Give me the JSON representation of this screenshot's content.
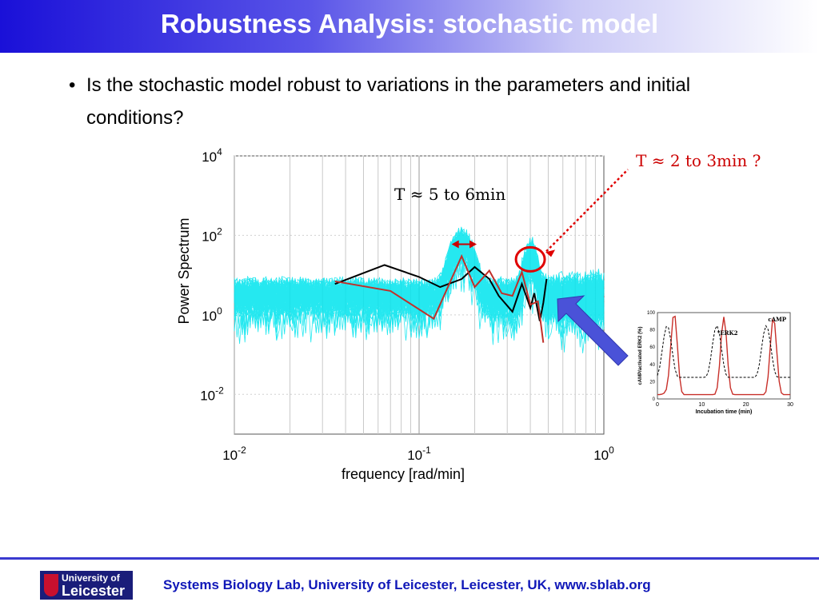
{
  "slide": {
    "title": "Robustness Analysis: stochastic model",
    "bullet_symbol": "•",
    "bullet_text": "Is the stochastic model robust to variations in the parameters and initial conditions?"
  },
  "chart_data": {
    "type": "line",
    "xlabel": "frequency [rad/min]",
    "ylabel": "Power Spectrum",
    "x_scale": "log",
    "y_scale": "log",
    "xlim": [
      0.01,
      1
    ],
    "ylim": [
      0.001,
      10000
    ],
    "x_ticks": [
      {
        "base": "10",
        "exp": "-2"
      },
      {
        "base": "10",
        "exp": "-1"
      },
      {
        "base": "10",
        "exp": "0"
      }
    ],
    "y_ticks": [
      {
        "base": "10",
        "exp": "4"
      },
      {
        "base": "10",
        "exp": "2"
      },
      {
        "base": "10",
        "exp": "0"
      },
      {
        "base": "10",
        "exp": "-2"
      }
    ],
    "grid": true,
    "colors": {
      "ensemble": "#00e5ee",
      "black": "#000000",
      "red": "#c0302a",
      "annotation": "#cc0000",
      "arrow": "#4a52d8"
    },
    "series": [
      {
        "color": "black",
        "x": [
          0.035,
          0.065,
          0.1,
          0.13,
          0.17,
          0.2,
          0.24,
          0.27,
          0.32,
          0.36,
          0.38,
          0.4,
          0.42,
          0.45,
          0.47,
          0.49
        ],
        "y": [
          6,
          18,
          9,
          5,
          8,
          16,
          8,
          3,
          1.2,
          6,
          3,
          1.5,
          3.5,
          0.7,
          2,
          8
        ]
      },
      {
        "color": "red",
        "x": [
          0.035,
          0.07,
          0.12,
          0.17,
          0.2,
          0.24,
          0.28,
          0.32,
          0.36,
          0.4,
          0.44,
          0.47
        ],
        "y": [
          7,
          4,
          0.8,
          30,
          5,
          13,
          3.5,
          3,
          12,
          1.8,
          2.2,
          0.2
        ]
      }
    ],
    "annotations": {
      "peak1": "T ≈ 5 to 6min",
      "peak2": "T ≈ 2 to 3min ?"
    }
  },
  "inset": {
    "xlabel": "Incubation time (min)",
    "ylabel": "cAMP/activated ERK2 (%)",
    "series_labels": [
      "cAMP",
      "*ERK2"
    ],
    "x_ticks": [
      "0",
      "10",
      "20",
      "30"
    ],
    "y_ticks": [
      "0",
      "20",
      "40",
      "60",
      "80",
      "100"
    ]
  },
  "footer": {
    "text": "Systems Biology Lab, University of Leicester, Leicester, UK, www.sblab.org",
    "logo_line1": "University of",
    "logo_line2": "Leicester"
  }
}
